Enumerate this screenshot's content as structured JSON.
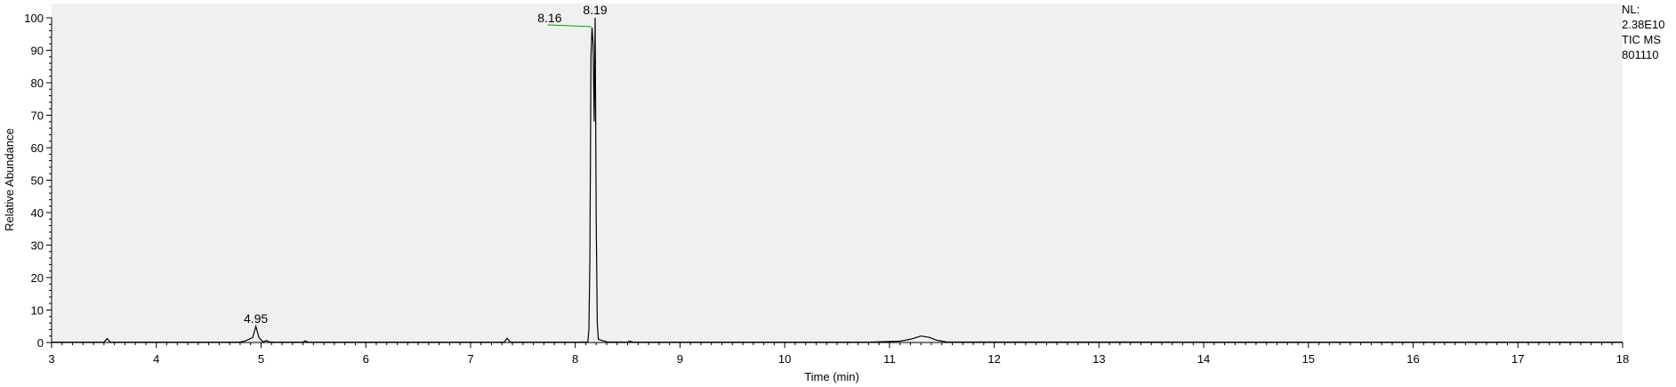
{
  "chart_data": {
    "type": "line",
    "title": "",
    "xlabel": "Time (min)",
    "ylabel": "Relative Abundance",
    "xlim": [
      3,
      18
    ],
    "ylim": [
      0,
      100
    ],
    "xticks": [
      "3",
      "4",
      "5",
      "6",
      "7",
      "8",
      "9",
      "10",
      "11",
      "12",
      "13",
      "14",
      "15",
      "16",
      "17",
      "18"
    ],
    "yticks": [
      "0",
      "10",
      "20",
      "30",
      "40",
      "50",
      "60",
      "70",
      "80",
      "90",
      "100"
    ],
    "grid": false,
    "plot_background": "#f0f0f0",
    "line_color": "#000000",
    "annotation_line_color": "#00a000",
    "info_lines": [
      "NL:",
      "2.38E10",
      "TIC  MS",
      "801110"
    ],
    "peak_labels": [
      {
        "x": 4.95,
        "y": 5,
        "label": "4.95"
      },
      {
        "x": 8.16,
        "y": 97,
        "label": "8.16"
      },
      {
        "x": 8.19,
        "y": 100,
        "label": "8.19"
      }
    ],
    "series": [
      {
        "x": [
          3.0,
          3.5,
          3.53,
          3.56,
          3.6,
          4.8,
          4.85,
          4.92,
          4.95,
          4.98,
          5.02,
          5.05,
          5.08,
          5.1,
          5.4,
          5.42,
          5.45,
          7.32,
          7.35,
          7.38,
          8.0,
          8.12,
          8.13,
          8.14,
          8.15,
          8.16,
          8.17,
          8.18,
          8.19,
          8.2,
          8.21,
          8.22,
          8.3,
          8.5,
          8.52,
          8.55,
          10.8,
          11.1,
          11.2,
          11.3,
          11.38,
          11.45,
          11.55,
          18.0
        ],
        "y": [
          0.1,
          0.1,
          1.2,
          0.1,
          0.1,
          0.1,
          0.5,
          1.5,
          5.0,
          1.5,
          0.2,
          0.6,
          0.2,
          0.1,
          0.1,
          0.5,
          0.1,
          0.1,
          1.3,
          0.1,
          0.1,
          0.2,
          4.0,
          26.0,
          88.0,
          97.0,
          92.0,
          68.0,
          100.0,
          38.0,
          6.0,
          1.0,
          0.2,
          0.1,
          0.4,
          0.1,
          0.1,
          0.4,
          1.0,
          2.0,
          1.6,
          0.7,
          0.15,
          0.1
        ]
      }
    ]
  }
}
